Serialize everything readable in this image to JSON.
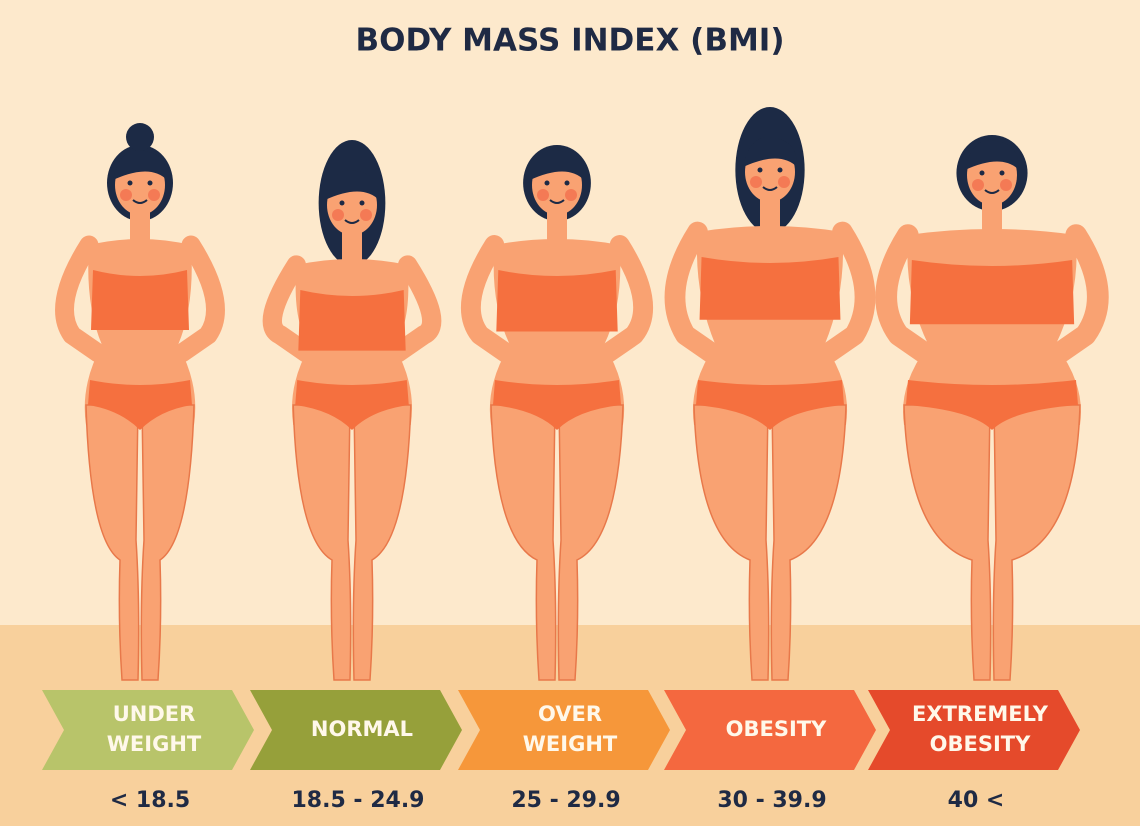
{
  "title": "BODY MASS INDEX (BMI)",
  "categories": [
    {
      "label": [
        "UNDER",
        "WEIGHT"
      ],
      "range": "< 18.5"
    },
    {
      "label": [
        "NORMAL"
      ],
      "range": "18.5 - 24.9"
    },
    {
      "label": [
        "OVER",
        "WEIGHT"
      ],
      "range": "25 - 29.9"
    },
    {
      "label": [
        "OBESITY"
      ],
      "range": "30 - 39.9"
    },
    {
      "label": [
        "EXTREMELY",
        "OBESITY"
      ],
      "range": "40 <"
    }
  ]
}
